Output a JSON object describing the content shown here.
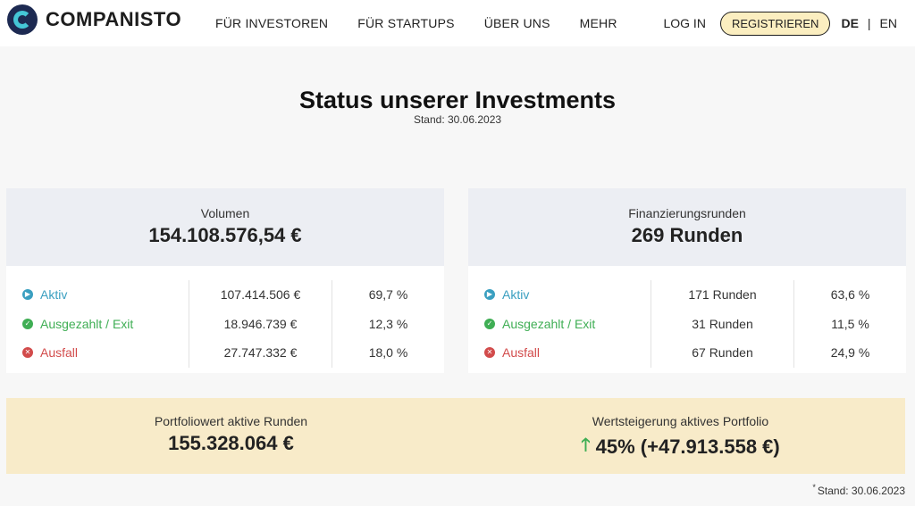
{
  "header": {
    "logo_text": "COMPANISTO",
    "nav": [
      "FÜR INVESTOREN",
      "FÜR STARTUPS",
      "ÜBER UNS",
      "MEHR"
    ],
    "login": "LOG IN",
    "register": "REGISTRIEREN",
    "lang_active": "DE",
    "lang_sep": "|",
    "lang_other": "EN"
  },
  "page": {
    "title": "Status unserer Investments",
    "subtitle": "Stand: 30.06.2023"
  },
  "volume_card": {
    "label": "Volumen",
    "value": "154.108.576,54 €",
    "rows": [
      {
        "label": "Aktiv",
        "amount": "107.414.506 €",
        "percent": "69,7 %"
      },
      {
        "label": "Ausgezahlt / Exit",
        "amount": "18.946.739 €",
        "percent": "12,3 %"
      },
      {
        "label": "Ausfall",
        "amount": "27.747.332 €",
        "percent": "18,0 %"
      }
    ]
  },
  "rounds_card": {
    "label": "Finanzierungsrunden",
    "value": "269 Runden",
    "rows": [
      {
        "label": "Aktiv",
        "amount": "171 Runden",
        "percent": "63,6 %"
      },
      {
        "label": "Ausgezahlt / Exit",
        "amount": "31 Runden",
        "percent": "11,5 %"
      },
      {
        "label": "Ausfall",
        "amount": "67 Runden",
        "percent": "24,9 %"
      }
    ]
  },
  "summary": {
    "portfolio_label": "Portfoliowert aktive Runden",
    "portfolio_value": "155.328.064 €",
    "growth_label": "Wertsteigerung aktives Portfolio",
    "growth_value": "45% (+47.913.558 €)"
  },
  "footnote": {
    "marker": "*",
    "text": "Stand: 30.06.2023"
  },
  "colors": {
    "aktiv": "#3a9fc0",
    "exit": "#3fae54",
    "ausfall": "#d24b4b",
    "summary_bg": "#f8ebc9",
    "register_bg": "#fbeec0"
  },
  "icons": {
    "aktiv": "play-circle-icon",
    "exit": "check-circle-icon",
    "ausfall": "x-circle-icon",
    "growth": "arrow-up-icon"
  }
}
